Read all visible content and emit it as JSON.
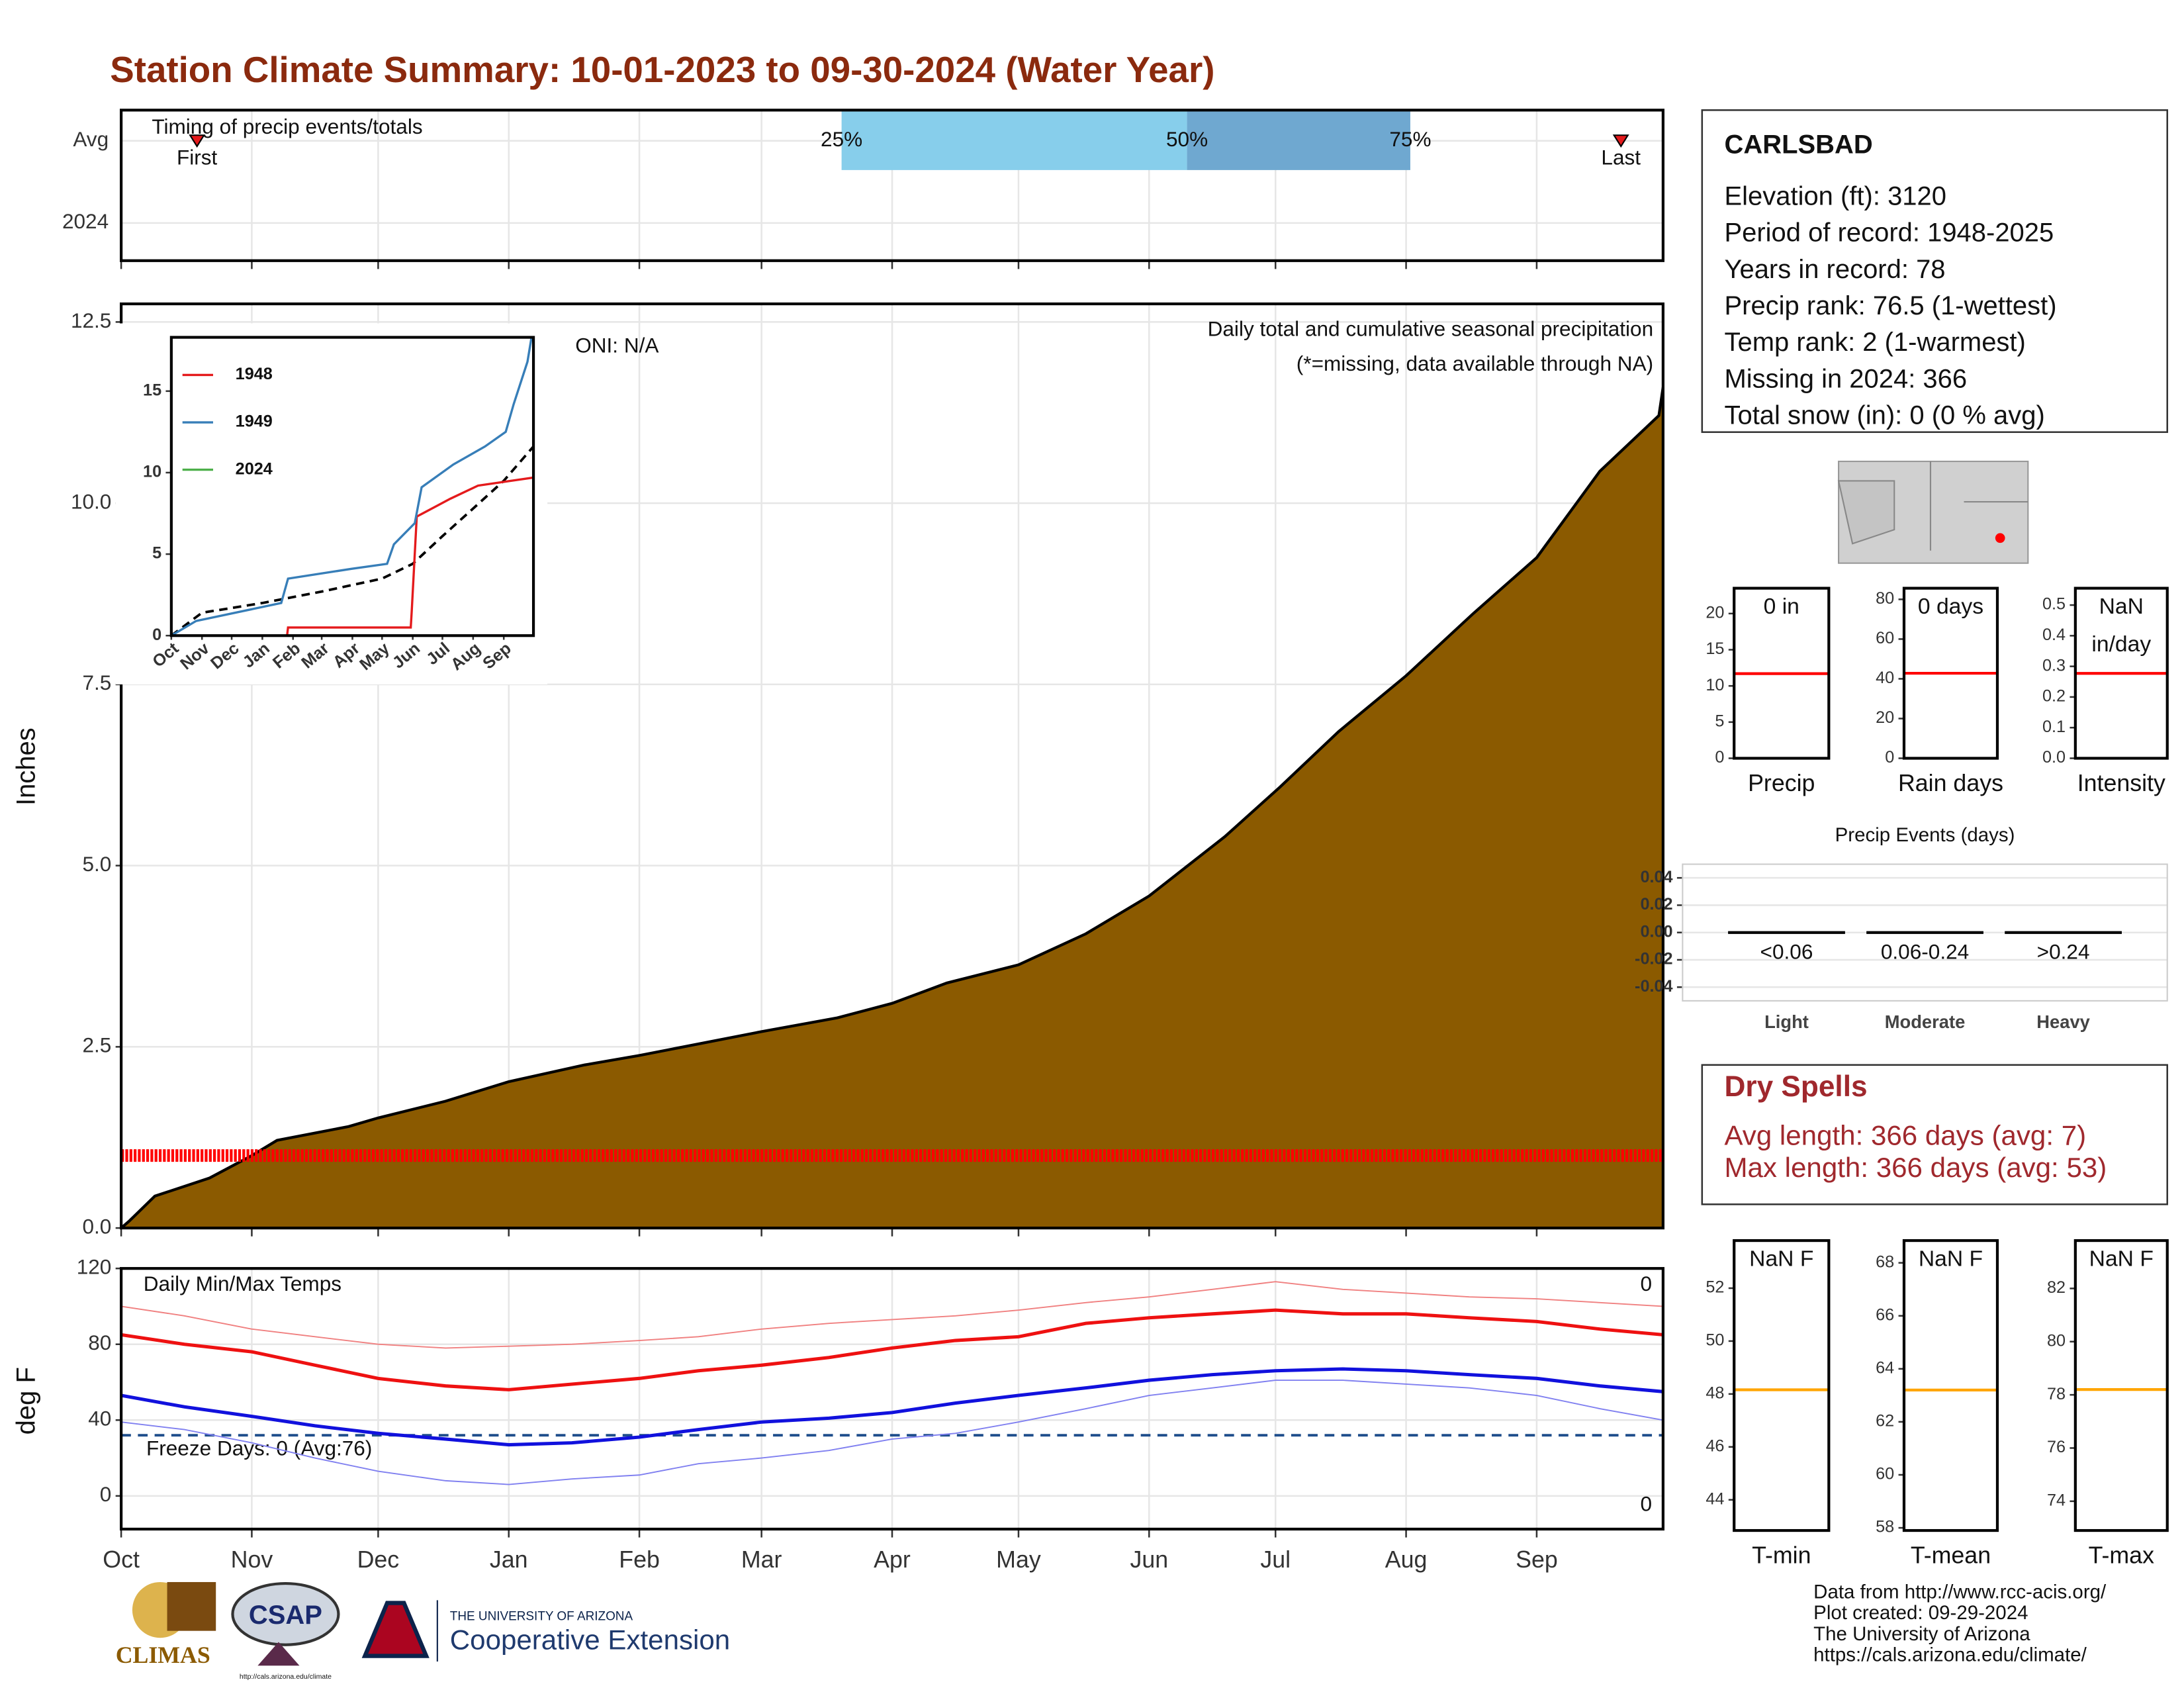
{
  "title": "Station Climate Summary: 10-01-2023 to 09-30-2024 (Water Year)",
  "station": {
    "name": "CARLSBAD",
    "lines": [
      "Elevation (ft): 3120",
      "Period of record: 1948-2025",
      "Years in record: 78",
      "Precip rank: 76.5 (1-wettest)",
      "Temp rank: 2 (1-warmest)",
      "Missing in 2024: 366",
      "Total snow (in): 0 (0 % avg)"
    ]
  },
  "dry_spells": {
    "title": "Dry Spells",
    "lines": [
      "Avg length: 366 days (avg: 7)",
      "Max length: 366 days (avg: 53)"
    ]
  },
  "footer": [
    "Data from http://www.rcc-acis.org/",
    "Plot created: 09-29-2024",
    "The University of Arizona",
    "https://cals.arizona.edu/climate/"
  ],
  "logos": {
    "climas": "CLIMAS",
    "csap": "CSAP",
    "csap_url": "http://cals.arizona.edu/climate",
    "university": "THE UNIVERSITY OF ARIZONA",
    "extension": "Cooperative Extension"
  },
  "chart_data": [
    {
      "type": "timing",
      "title": "Timing of precip events/totals",
      "categories": [
        "Avg",
        "2024"
      ],
      "xlim": [
        0,
        366
      ],
      "xticks": [
        0,
        31,
        61,
        92,
        123,
        152,
        183,
        213,
        244,
        274,
        305,
        336
      ],
      "grid": true,
      "markers": [
        {
          "label": "First",
          "value": 18
        },
        {
          "label": "Last",
          "value": 356
        }
      ],
      "quantiles": {
        "labels": [
          "25%",
          "50%",
          "75%"
        ],
        "values": [
          171,
          253,
          306
        ],
        "colors": [
          "#87ceeb",
          "#6fa8d0"
        ]
      },
      "marker_color": "#e41a1c"
    },
    {
      "type": "area",
      "ylabel": "Inches",
      "xlim": [
        0,
        366
      ],
      "ylim": [
        0,
        12.75
      ],
      "grid": true,
      "color": "#8b5a00",
      "xticks": [
        0,
        31,
        61,
        92,
        123,
        152,
        183,
        213,
        244,
        274,
        305,
        336
      ],
      "yticks": [
        {
          "value": 0,
          "label": "0.0"
        },
        2.5,
        {
          "value": 5,
          "label": "5.0"
        },
        7.5,
        {
          "value": 10,
          "label": "10.0"
        },
        12.5
      ],
      "x": [
        0,
        2,
        8,
        21,
        31,
        37,
        54,
        61,
        77,
        92,
        110,
        123,
        152,
        170,
        183,
        196,
        213,
        229,
        244,
        262,
        275,
        289,
        305,
        321,
        336,
        351,
        365,
        366
      ],
      "values": [
        0,
        0.1,
        0.44,
        0.69,
        1.0,
        1.21,
        1.4,
        1.52,
        1.75,
        2.02,
        2.25,
        2.38,
        2.71,
        2.9,
        3.1,
        3.38,
        3.63,
        4.06,
        4.58,
        5.4,
        6.08,
        6.85,
        7.62,
        8.48,
        9.25,
        10.44,
        11.21,
        11.6
      ],
      "missing_level": 1,
      "missing_color": "#ff0000",
      "annotations": [
        {
          "text": "ONI: N/A",
          "color": "#000000"
        },
        {
          "text": "Daily total and cumulative seasonal precipitation",
          "color": "#000000"
        },
        {
          "text": "(*=missing, data available through NA)",
          "color": "#ff0000"
        },
        {
          "text": "0",
          "color": "#ffa500"
        }
      ]
    },
    {
      "type": "line",
      "xlim": [
        0,
        366
      ],
      "ylim": [
        0,
        18.3
      ],
      "legend": "upper left",
      "xticks": [
        {
          "value": 0,
          "label": "Oct"
        },
        {
          "value": 31,
          "label": "Nov"
        },
        {
          "value": 61,
          "label": "Dec"
        },
        {
          "value": 92,
          "label": "Jan"
        },
        {
          "value": 123,
          "label": "Feb"
        },
        {
          "value": 152,
          "label": "Mar"
        },
        {
          "value": 183,
          "label": "Apr"
        },
        {
          "value": 213,
          "label": "May"
        },
        {
          "value": 244,
          "label": "Jun"
        },
        {
          "value": 274,
          "label": "Jul"
        },
        {
          "value": 305,
          "label": "Aug"
        },
        {
          "value": 336,
          "label": "Sep"
        }
      ],
      "yticks": [
        0,
        5,
        10,
        15
      ],
      "series": [
        {
          "name": "1948",
          "color": "#e41a1c",
          "x": [
            0,
            117,
            118,
            242,
            243,
            248,
            282,
            310,
            366
          ],
          "values": [
            0,
            0,
            0.5,
            0.5,
            1.5,
            7.3,
            8.4,
            9.2,
            9.7
          ]
        },
        {
          "name": "1949",
          "color": "#377eb8",
          "x": [
            0,
            25,
            111,
            118,
            182,
            218,
            225,
            246,
            253,
            285,
            317,
            338,
            346,
            360,
            364
          ],
          "values": [
            0,
            0.9,
            2.0,
            3.5,
            4.1,
            4.4,
            5.6,
            6.9,
            9.1,
            10.5,
            11.6,
            12.5,
            14.2,
            16.8,
            18.3
          ]
        },
        {
          "name": "2024",
          "color": "#4daf4a",
          "x": [],
          "values": []
        }
      ],
      "avg": {
        "color": "#000000",
        "x": [
          0,
          31,
          92,
          152,
          213,
          244,
          274,
          305,
          336,
          366
        ],
        "values": [
          0,
          1.4,
          2.0,
          2.7,
          3.5,
          4.4,
          6.1,
          7.8,
          9.5,
          11.6
        ]
      }
    },
    {
      "type": "line",
      "ylabel": "deg F",
      "xlim": [
        0,
        366
      ],
      "ylim": [
        -17.5,
        120
      ],
      "grid": true,
      "xticks": [
        {
          "value": 0,
          "label": "Oct"
        },
        {
          "value": 31,
          "label": "Nov"
        },
        {
          "value": 61,
          "label": "Dec"
        },
        {
          "value": 92,
          "label": "Jan"
        },
        {
          "value": 123,
          "label": "Feb"
        },
        {
          "value": 152,
          "label": "Mar"
        },
        {
          "value": 183,
          "label": "Apr"
        },
        {
          "value": 213,
          "label": "May"
        },
        {
          "value": 244,
          "label": "Jun"
        },
        {
          "value": 274,
          "label": "Jul"
        },
        {
          "value": 305,
          "label": "Aug"
        },
        {
          "value": 336,
          "label": "Sep"
        }
      ],
      "yticks": [
        0,
        40,
        80,
        120
      ],
      "x": [
        0,
        15,
        31,
        46,
        61,
        77,
        92,
        107,
        123,
        137,
        152,
        168,
        183,
        198,
        213,
        229,
        244,
        259,
        274,
        290,
        305,
        320,
        336,
        351,
        366
      ],
      "series": [
        {
          "color": "#ee1111",
          "values": [
            85,
            80,
            76,
            69,
            62,
            58,
            56,
            59,
            62,
            66,
            69,
            73,
            78,
            82,
            84,
            91,
            94,
            96,
            98,
            96,
            96,
            94,
            92,
            88,
            85
          ]
        },
        {
          "color": "#1111dd",
          "values": [
            53,
            47,
            42,
            37,
            33,
            30,
            27,
            28,
            31,
            35,
            39,
            41,
            44,
            49,
            53,
            57,
            61,
            64,
            66,
            67,
            66,
            64,
            62,
            58,
            55
          ]
        },
        {
          "color": "#f08080",
          "values": [
            100,
            95,
            88,
            84,
            80,
            78,
            79,
            80,
            82,
            84,
            88,
            91,
            93,
            95,
            98,
            102,
            105,
            109,
            113,
            109,
            107,
            105,
            104,
            102,
            100
          ]
        },
        {
          "color": "#8080f0",
          "values": [
            39,
            35,
            28,
            20,
            13,
            8,
            6,
            9,
            11,
            17,
            20,
            24,
            30,
            33,
            39,
            46,
            53,
            57,
            61,
            61,
            59,
            57,
            53,
            46,
            40
          ]
        }
      ],
      "freeze_line": 32,
      "freeze_color": "#1f4e8c",
      "annotations": [
        {
          "text": "Daily Min/Max Temps",
          "color": "#000000"
        },
        {
          "text": "Freeze Days: 0 (Avg:76)",
          "color": "#1f4e8c"
        },
        {
          "text": "0",
          "color": "#ff0000"
        },
        {
          "text": "0",
          "color": "#0000cc"
        }
      ]
    },
    {
      "type": "level",
      "label": "Precip",
      "value_text": [
        "0 in"
      ],
      "ylim": [
        0,
        23.5
      ],
      "yticks": [
        0,
        5,
        10,
        15,
        20
      ],
      "value": 11.7,
      "color": "#ff0000"
    },
    {
      "type": "level",
      "label": "Rain days",
      "value_text": [
        "0 days"
      ],
      "ylim": [
        0,
        85.6
      ],
      "yticks": [
        0,
        20,
        40,
        60,
        80
      ],
      "value": 42.8,
      "color": "#ff0000"
    },
    {
      "type": "level",
      "label": "Intensity",
      "value_text": [
        "NaN",
        "in/day"
      ],
      "ylim": [
        0,
        0.555
      ],
      "yticks": [
        {
          "value": 0,
          "label": "0.0"
        },
        0.1,
        0.2,
        0.3,
        0.4,
        0.5
      ],
      "value": 0.277,
      "color": "#ff0000"
    },
    {
      "type": "bar",
      "title": "Precip Events (days)",
      "categories": [
        "Light",
        "Moderate",
        "Heavy"
      ],
      "subtitles": [
        "<0.06",
        "0.06-0.24",
        ">0.24"
      ],
      "values": [
        0,
        0,
        0
      ],
      "color": "#000000",
      "ylim": [
        -0.05,
        0.05
      ],
      "grid": true,
      "yticks": [
        -0.04,
        -0.02,
        {
          "value": 0,
          "label": "0.00"
        },
        0.02,
        0.04
      ]
    },
    {
      "type": "level",
      "label": "T-min",
      "value_text": [
        "NaN F"
      ],
      "ylim": [
        42.84,
        53.8
      ],
      "yticks": [
        44,
        46,
        48,
        50,
        52
      ],
      "value": 48.16,
      "color": "#ffa500"
    },
    {
      "type": "level",
      "label": "T-mean",
      "value_text": [
        "NaN F"
      ],
      "ylim": [
        57.9,
        68.84
      ],
      "yticks": [
        58,
        60,
        62,
        64,
        66,
        68
      ],
      "value": 63.2,
      "color": "#ffa500"
    },
    {
      "type": "level",
      "label": "T-max",
      "value_text": [
        "NaN F"
      ],
      "ylim": [
        72.9,
        83.8
      ],
      "yticks": [
        74,
        76,
        78,
        80,
        82
      ],
      "value": 78.2,
      "color": "#ffa500"
    }
  ]
}
